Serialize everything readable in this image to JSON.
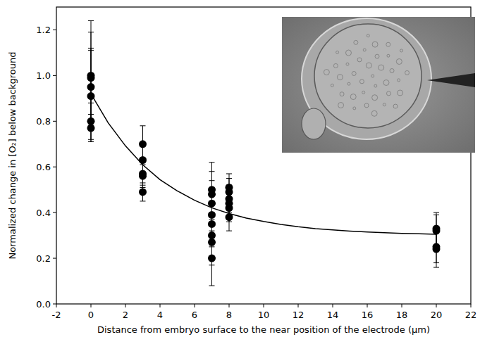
{
  "chart_data": {
    "type": "scatter",
    "x_label": "Distance from embryo surface to the near position of the electrode (μm)",
    "y_label": "Normalized change in [O₂] below background",
    "xlim": [
      -2,
      22
    ],
    "xticks": [
      -2,
      0,
      2,
      4,
      6,
      8,
      10,
      12,
      14,
      16,
      18,
      20,
      22
    ],
    "ylim": [
      0,
      1.3
    ],
    "yticks": [
      {
        "value": 0,
        "label": "0.0"
      },
      {
        "value": 0.2,
        "label": "0.2"
      },
      {
        "value": 0.4,
        "label": "0.4"
      },
      {
        "value": 0.6,
        "label": "0.6"
      },
      {
        "value": 0.8,
        "label": "0.8"
      },
      {
        "value": 1.0,
        "label": "1.0"
      },
      {
        "value": 1.2,
        "label": "1.2"
      }
    ],
    "grid": false,
    "series": [
      {
        "type": "scatter",
        "color": "#000000",
        "marker": "circle",
        "x": [
          0,
          0,
          0,
          0,
          0,
          0,
          3,
          3,
          3,
          3,
          3,
          7,
          7,
          7,
          7,
          7,
          7,
          7,
          7,
          8,
          8,
          8,
          8,
          8,
          8,
          20,
          20,
          20,
          20
        ],
        "values": [
          1.0,
          0.99,
          0.95,
          0.91,
          0.8,
          0.77,
          0.7,
          0.63,
          0.57,
          0.56,
          0.49,
          0.5,
          0.48,
          0.44,
          0.39,
          0.35,
          0.3,
          0.27,
          0.2,
          0.51,
          0.49,
          0.46,
          0.44,
          0.42,
          0.38,
          0.33,
          0.32,
          0.25,
          0.24
        ],
        "errors": [
          0.24,
          0.2,
          0.17,
          0.2,
          0.08,
          0.06,
          0.08,
          0.06,
          0.05,
          0.05,
          0.04,
          0.12,
          0.1,
          0.1,
          0.1,
          0.1,
          0.1,
          0.1,
          0.12,
          0.06,
          0.06,
          0.06,
          0.06,
          0.06,
          0.06,
          0.07,
          0.07,
          0.07,
          0.08
        ]
      },
      {
        "type": "line",
        "color": "#000000",
        "line_style": "solid",
        "x": [
          0,
          1,
          2,
          3,
          4,
          5,
          6,
          7,
          8,
          9,
          10,
          11,
          12,
          13,
          14,
          15,
          16,
          17,
          18,
          19,
          20
        ],
        "values": [
          0.92,
          0.793,
          0.692,
          0.609,
          0.544,
          0.495,
          0.454,
          0.421,
          0.396,
          0.376,
          0.361,
          0.348,
          0.338,
          0.33,
          0.324,
          0.319,
          0.315,
          0.312,
          0.309,
          0.307,
          0.305
        ]
      }
    ]
  }
}
